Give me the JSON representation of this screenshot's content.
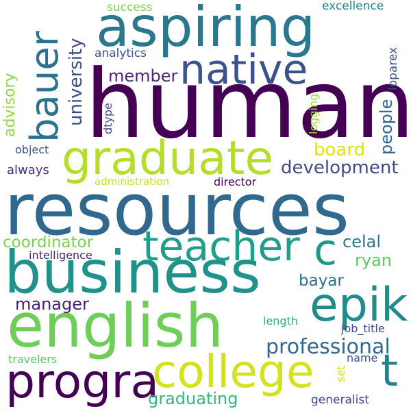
{
  "words": [
    {
      "text": "human",
      "color": "#440154"
    },
    {
      "text": "resources",
      "color": "#31688e"
    },
    {
      "text": "aspiring",
      "color": "#2a788e"
    },
    {
      "text": "business",
      "color": "#21918c"
    },
    {
      "text": "english",
      "color": "#6ece58"
    },
    {
      "text": "graduate",
      "color": "#b5de2b"
    },
    {
      "text": "native",
      "color": "#3b528b"
    },
    {
      "text": "college",
      "color": "#d2e21b"
    },
    {
      "text": "progra",
      "color": "#440154"
    },
    {
      "text": "teacher",
      "color": "#1f9e89"
    },
    {
      "text": "bauer",
      "color": "#2c728e"
    },
    {
      "text": "epik",
      "color": "#228c8d"
    },
    {
      "text": "c",
      "color": "#1f988b"
    },
    {
      "text": "t",
      "color": "#26828e"
    },
    {
      "text": "professional",
      "color": "#31688e"
    },
    {
      "text": "development",
      "color": "#3e4a89"
    },
    {
      "text": "coordinator",
      "color": "#7ad151"
    },
    {
      "text": "manager",
      "color": "#482173"
    },
    {
      "text": "member",
      "color": "#482878"
    },
    {
      "text": "university",
      "color": "#3e4a89"
    },
    {
      "text": "people",
      "color": "#31688e"
    },
    {
      "text": "graduating",
      "color": "#35b779"
    },
    {
      "text": "board",
      "color": "#dde318"
    },
    {
      "text": "celal",
      "color": "#2a788e"
    },
    {
      "text": "ryan",
      "color": "#5ec962"
    },
    {
      "text": "bayar",
      "color": "#2c728e"
    },
    {
      "text": "advisory",
      "color": "#90d743"
    },
    {
      "text": "analytics",
      "color": "#3b528b"
    },
    {
      "text": "success",
      "color": "#7ad151"
    },
    {
      "text": "excellence",
      "color": "#26828e"
    },
    {
      "text": "loparex",
      "color": "#3b528b"
    },
    {
      "text": "logging",
      "color": "#a0da39"
    },
    {
      "text": "dtype",
      "color": "#3e4a89"
    },
    {
      "text": "object",
      "color": "#3b528b"
    },
    {
      "text": "always",
      "color": "#472d7b"
    },
    {
      "text": "administration",
      "color": "#c8e020"
    },
    {
      "text": "director",
      "color": "#440154"
    },
    {
      "text": "intelligence",
      "color": "#482173"
    },
    {
      "text": "length",
      "color": "#2db27d"
    },
    {
      "text": "job_title",
      "color": "#3e4a89"
    },
    {
      "text": "set",
      "color": "#dde318"
    },
    {
      "text": "name",
      "color": "#3b528b"
    },
    {
      "text": "travelers",
      "color": "#5ec962"
    },
    {
      "text": "generalist",
      "color": "#3e4a89"
    }
  ]
}
